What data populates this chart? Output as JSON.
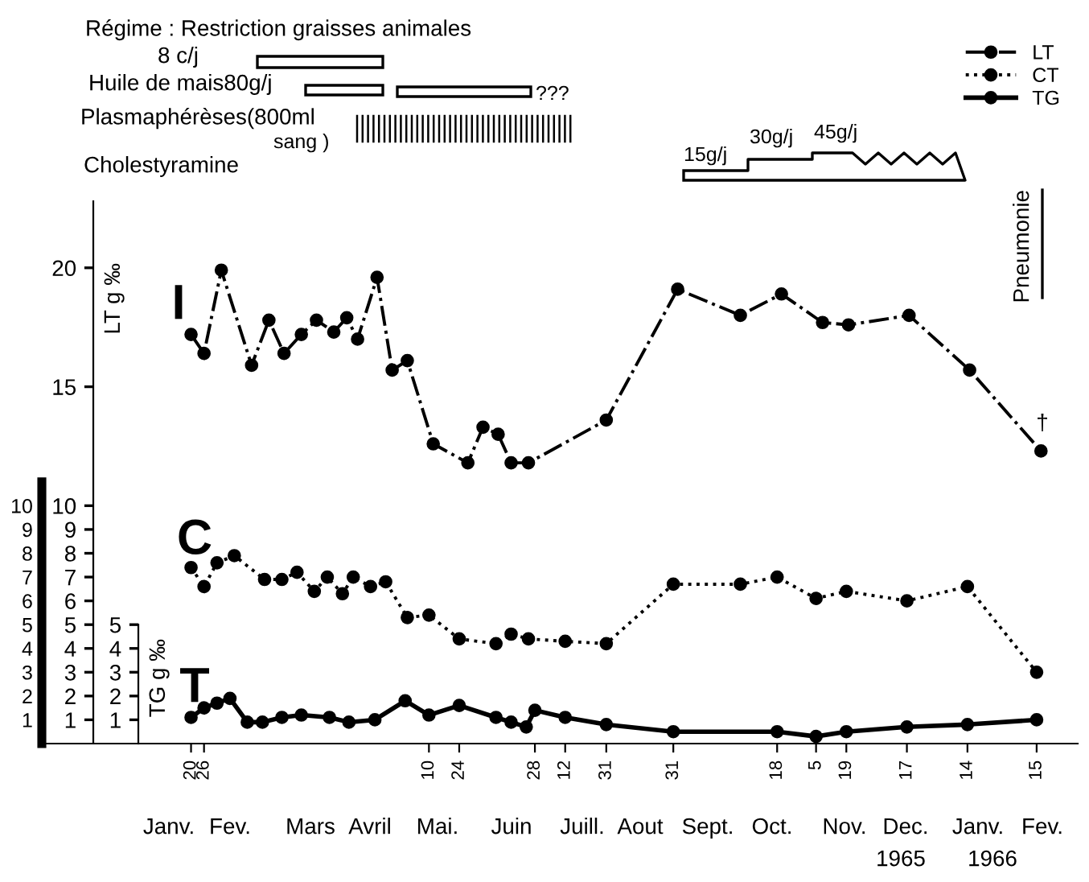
{
  "chart_data": {
    "type": "line",
    "ylabel": "LT g ‰",
    "y3label": "TG g ‰",
    "xlim": [
      "1964-11-12",
      "1966-03-06"
    ],
    "xticks": [
      {
        "value": "1965-01-20",
        "label": "20"
      },
      {
        "value": "1965-01-26",
        "label": "26"
      },
      {
        "value": "1965-05-10",
        "label": "10"
      },
      {
        "value": "1965-05-24",
        "label": "24"
      },
      {
        "value": "1965-06-28",
        "label": "28"
      },
      {
        "value": "1965-07-12",
        "label": "12"
      },
      {
        "value": "1965-07-31",
        "label": "31"
      },
      {
        "value": "1965-08-31",
        "label": "31"
      },
      {
        "value": "1965-10-18",
        "label": "18"
      },
      {
        "value": "1965-11-05",
        "label": "5"
      },
      {
        "value": "1965-11-19",
        "label": "19"
      },
      {
        "value": "1965-12-17",
        "label": "17"
      },
      {
        "value": "1966-01-14",
        "label": "14"
      },
      {
        "value": "1966-02-15",
        "label": "15"
      }
    ],
    "y2lim": [
      0,
      11
    ],
    "y2ticks": [
      1,
      2,
      3,
      4,
      5,
      6,
      7,
      8,
      9,
      10
    ],
    "ylim": [
      0,
      22.8
    ],
    "yticks": [
      1,
      2,
      3,
      4,
      5,
      6,
      7,
      8,
      9,
      10,
      15,
      20
    ],
    "y3lim": [
      0,
      5
    ],
    "y3ticks": [
      1,
      2,
      3,
      4,
      5
    ],
    "legend": "top right",
    "marker": "circle",
    "grid": false,
    "series": [
      {
        "name": "LT",
        "color": "#000000",
        "line_style": "dashdot",
        "x": [
          "1965-01-20",
          "1965-01-26",
          "1965-02-03",
          "1965-02-17",
          "1965-02-25",
          "1965-03-04",
          "1965-03-12",
          "1965-03-19",
          "1965-03-27",
          "1965-04-02",
          "1965-04-07",
          "1965-04-16",
          "1965-04-23",
          "1965-04-30",
          "1965-05-12",
          "1965-05-28",
          "1965-06-04",
          "1965-06-11",
          "1965-06-17",
          "1965-06-25",
          "1965-07-31",
          "1965-09-02",
          "1965-10-01",
          "1965-10-20",
          "1965-11-08",
          "1965-11-20",
          "1965-12-18",
          "1966-01-15",
          "1966-02-17"
        ],
        "values": [
          17.2,
          16.4,
          19.9,
          15.9,
          17.8,
          16.4,
          17.2,
          17.8,
          17.3,
          17.9,
          17.0,
          19.6,
          15.7,
          16.1,
          12.6,
          11.8,
          13.3,
          13.0,
          11.8,
          11.8,
          13.6,
          19.1,
          18.0,
          18.9,
          17.7,
          17.6,
          18.0,
          15.7,
          12.3
        ]
      },
      {
        "name": "CT",
        "color": "#000000",
        "line_style": "dotted",
        "x": [
          "1965-01-20",
          "1965-01-26",
          "1965-02-01",
          "1965-02-09",
          "1965-02-23",
          "1965-03-03",
          "1965-03-10",
          "1965-03-18",
          "1965-03-24",
          "1965-03-31",
          "1965-04-05",
          "1965-04-13",
          "1965-04-20",
          "1965-04-30",
          "1965-05-10",
          "1965-05-24",
          "1965-06-10",
          "1965-06-17",
          "1965-06-25",
          "1965-07-12",
          "1965-07-31",
          "1965-08-31",
          "1965-10-01",
          "1965-10-18",
          "1965-11-05",
          "1965-11-19",
          "1965-12-17",
          "1966-01-14",
          "1966-02-15"
        ],
        "values": [
          7.4,
          6.6,
          7.6,
          7.9,
          6.9,
          6.9,
          7.2,
          6.4,
          7.0,
          6.3,
          7.0,
          6.6,
          6.8,
          5.3,
          5.4,
          4.4,
          4.2,
          4.6,
          4.4,
          4.3,
          4.2,
          6.7,
          6.7,
          7.0,
          6.1,
          6.4,
          6.0,
          6.6,
          3.0
        ]
      },
      {
        "name": "TG",
        "color": "#000000",
        "line_style": "solid",
        "x": [
          "1965-01-20",
          "1965-01-26",
          "1965-02-01",
          "1965-02-07",
          "1965-02-15",
          "1965-02-22",
          "1965-03-03",
          "1965-03-12",
          "1965-03-25",
          "1965-04-03",
          "1965-04-15",
          "1965-04-29",
          "1965-05-10",
          "1965-05-24",
          "1965-06-10",
          "1965-06-17",
          "1965-06-24",
          "1965-06-28",
          "1965-07-12",
          "1965-07-31",
          "1965-08-31",
          "1965-10-18",
          "1965-11-05",
          "1965-11-19",
          "1965-12-17",
          "1966-01-14",
          "1966-02-15"
        ],
        "values": [
          1.1,
          1.5,
          1.7,
          1.9,
          0.9,
          0.9,
          1.1,
          1.2,
          1.1,
          0.9,
          1.0,
          1.8,
          1.2,
          1.6,
          1.1,
          0.9,
          0.7,
          1.4,
          1.1,
          0.8,
          0.5,
          0.5,
          0.3,
          0.5,
          0.7,
          0.8,
          1.0
        ]
      }
    ],
    "annotations": [
      "Régime : Restriction graisses animales",
      "8 c/j",
      "Huile de mais80g/j",
      "???",
      "Plasmaphérèses(800ml",
      "sang )",
      "Cholestyramine",
      "15g/j",
      "30g/j",
      "45g/j",
      "I",
      "C",
      "T",
      "Pneumonie",
      "†",
      "Janv.",
      "Fev.",
      "Mars",
      "Avril",
      "Mai.",
      "Juin",
      "Juill.",
      "Aout",
      "Sept.",
      "Oct.",
      "Nov.",
      "Dec.",
      "Janv.",
      "Fev.",
      "1965",
      "1966"
    ]
  }
}
